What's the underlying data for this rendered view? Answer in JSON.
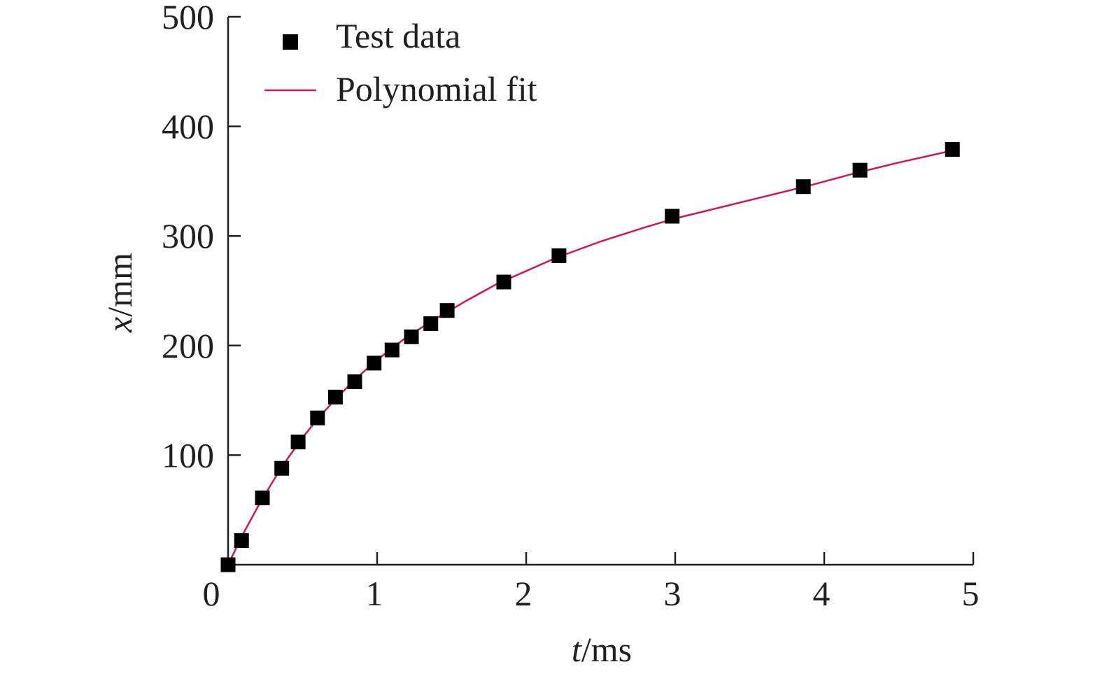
{
  "chart_data": {
    "type": "scatter",
    "xlabel": {
      "var": "t",
      "unit": "/ms"
    },
    "ylabel": {
      "var": "x",
      "unit": "/mm"
    },
    "xlim": [
      0,
      5
    ],
    "ylim": [
      0,
      500
    ],
    "xticks": [
      "0",
      "1",
      "2",
      "3",
      "4",
      "5"
    ],
    "yticks": [
      "100",
      "200",
      "300",
      "400",
      "500"
    ],
    "grid": false,
    "legend_position": "top-left",
    "colors": {
      "points": "#000000",
      "fit": "#d4145a",
      "axis": "#231f20"
    },
    "series": [
      {
        "name": "Test data",
        "kind": "points",
        "x": [
          0.0,
          0.09,
          0.23,
          0.36,
          0.47,
          0.6,
          0.72,
          0.85,
          0.98,
          1.1,
          1.23,
          1.36,
          1.47,
          1.85,
          2.22,
          2.98,
          3.86,
          4.24,
          4.86
        ],
        "y": [
          0,
          22,
          61,
          88,
          112,
          134,
          153,
          167,
          184,
          196,
          208,
          220,
          232,
          258,
          282,
          318,
          345,
          360,
          379
        ]
      },
      {
        "name": "Polynomial fit",
        "kind": "line",
        "x": [
          0.0,
          0.1,
          0.2,
          0.3,
          0.4,
          0.5,
          0.6,
          0.7,
          0.8,
          0.9,
          1.0,
          1.2,
          1.4,
          1.6,
          1.8,
          2.0,
          2.2,
          2.5,
          2.8,
          3.0,
          3.3,
          3.6,
          3.9,
          4.2,
          4.5,
          4.86
        ],
        "y": [
          0,
          28,
          53,
          76,
          97,
          116,
          133,
          148,
          162,
          175,
          187,
          208,
          225,
          241,
          256,
          268,
          280,
          295,
          308,
          316,
          326,
          336,
          346,
          357,
          367,
          378
        ]
      }
    ]
  }
}
